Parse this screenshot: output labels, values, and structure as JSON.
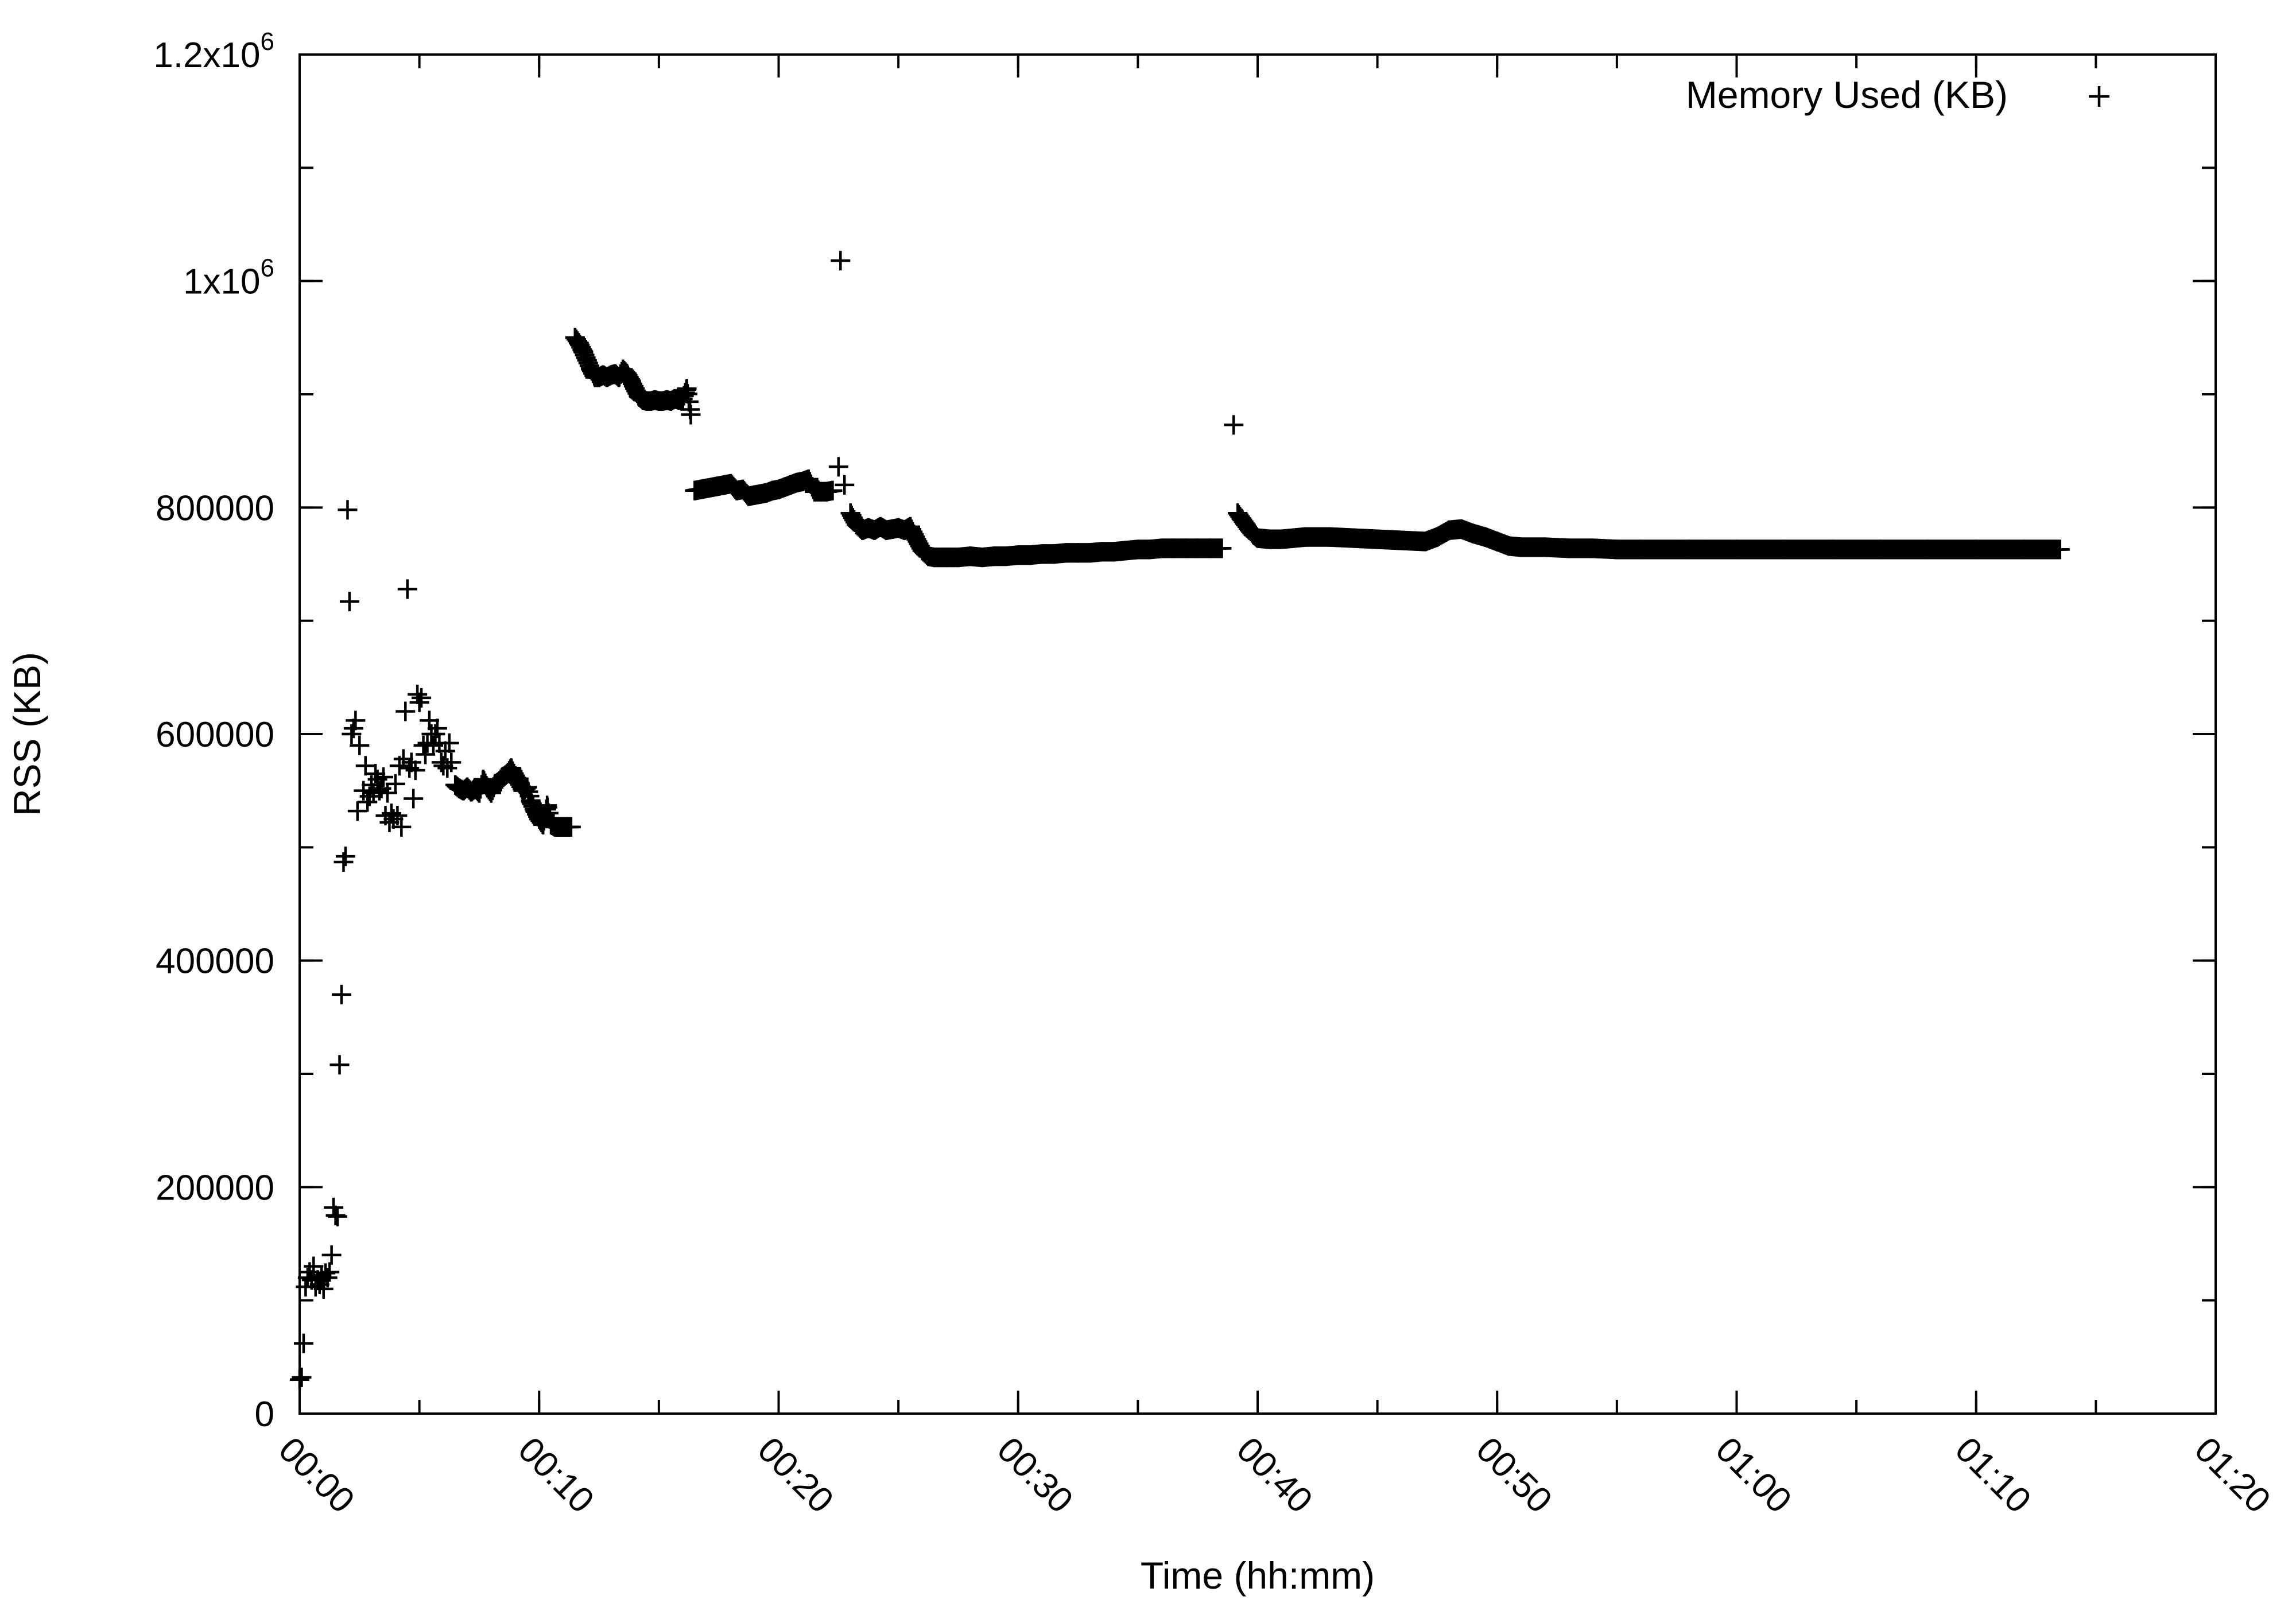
{
  "chart_data": {
    "type": "scatter",
    "title": "",
    "xlabel": "Time (hh:mm)",
    "ylabel": "RSS (KB)",
    "xlim": [
      "00:00",
      "01:20"
    ],
    "ylim": [
      0,
      1200000
    ],
    "x_ticks": [
      "00:00",
      "00:10",
      "00:20",
      "00:30",
      "00:40",
      "00:50",
      "01:00",
      "01:10",
      "01:20"
    ],
    "y_ticks": [
      {
        "value": 0,
        "label": "0"
      },
      {
        "value": 200000,
        "label": "200000"
      },
      {
        "value": 400000,
        "label": "400000"
      },
      {
        "value": 600000,
        "label": "600000"
      },
      {
        "value": 800000,
        "label": "800000"
      },
      {
        "value": 1000000,
        "label": "1x10",
        "exp": "6"
      },
      {
        "value": 1200000,
        "label": "1.2x10",
        "exp": "6"
      }
    ],
    "grid": false,
    "legend_position": "top-right",
    "marker": "plus",
    "marker_color": "#000000",
    "series": [
      {
        "name": "Memory Used (KB)",
        "points": [
          [
            "00:00:00",
            30000
          ],
          [
            "00:00:05",
            32000
          ],
          [
            "00:00:10",
            62000
          ],
          [
            "00:00:15",
            112000
          ],
          [
            "00:00:20",
            120000
          ],
          [
            "00:00:25",
            125000
          ],
          [
            "00:00:30",
            118000
          ],
          [
            "00:00:35",
            130000
          ],
          [
            "00:00:40",
            112000
          ],
          [
            "00:00:45",
            118000
          ],
          [
            "00:00:50",
            114000
          ],
          [
            "00:00:55",
            122000
          ],
          [
            "00:01:00",
            110000
          ],
          [
            "00:01:05",
            124000
          ],
          [
            "00:01:10",
            120000
          ],
          [
            "00:01:15",
            125000
          ],
          [
            "00:01:20",
            140000
          ],
          [
            "00:01:25",
            182000
          ],
          [
            "00:01:30",
            175000
          ],
          [
            "00:01:35",
            174000
          ],
          [
            "00:01:40",
            308000
          ],
          [
            "00:01:45",
            370000
          ],
          [
            "00:01:50",
            487000
          ],
          [
            "00:01:55",
            492000
          ],
          [
            "00:02:00",
            798000
          ],
          [
            "00:02:05",
            717000
          ],
          [
            "00:02:10",
            600000
          ],
          [
            "00:02:15",
            605000
          ],
          [
            "00:02:20",
            612000
          ],
          [
            "00:02:25",
            532000
          ],
          [
            "00:02:30",
            590000
          ],
          [
            "00:02:40",
            550000
          ],
          [
            "00:02:45",
            572000
          ],
          [
            "00:02:50",
            540000
          ],
          [
            "00:02:55",
            545000
          ],
          [
            "00:03:00",
            555000
          ],
          [
            "00:03:05",
            548000
          ],
          [
            "00:03:10",
            565000
          ],
          [
            "00:03:15",
            560000
          ],
          [
            "00:03:20",
            550000
          ],
          [
            "00:03:25",
            552000
          ],
          [
            "00:03:30",
            562000
          ],
          [
            "00:03:35",
            528000
          ],
          [
            "00:03:40",
            548000
          ],
          [
            "00:03:45",
            522000
          ],
          [
            "00:03:50",
            530000
          ],
          [
            "00:03:55",
            525000
          ],
          [
            "00:04:00",
            556000
          ],
          [
            "00:04:05",
            528000
          ],
          [
            "00:04:10",
            572000
          ],
          [
            "00:04:15",
            518000
          ],
          [
            "00:04:20",
            578000
          ],
          [
            "00:04:25",
            620000
          ],
          [
            "00:04:30",
            728000
          ],
          [
            "00:04:35",
            570000
          ],
          [
            "00:04:40",
            575000
          ],
          [
            "00:04:45",
            543000
          ],
          [
            "00:04:50",
            568000
          ],
          [
            "00:04:55",
            635000
          ],
          [
            "00:05:00",
            628000
          ],
          [
            "00:05:05",
            632000
          ],
          [
            "00:05:10",
            590000
          ],
          [
            "00:05:15",
            582000
          ],
          [
            "00:05:20",
            592000
          ],
          [
            "00:05:25",
            612000
          ],
          [
            "00:05:30",
            600000
          ],
          [
            "00:05:35",
            590000
          ],
          [
            "00:05:40",
            600000
          ],
          [
            "00:05:45",
            605000
          ],
          [
            "00:05:50",
            592000
          ],
          [
            "00:05:55",
            575000
          ],
          [
            "00:06:00",
            572000
          ],
          [
            "00:06:05",
            585000
          ],
          [
            "00:06:10",
            570000
          ],
          [
            "00:06:15",
            592000
          ],
          [
            "00:06:20",
            575000
          ],
          [
            "00:06:30",
            555000
          ],
          [
            "00:06:40",
            552000
          ],
          [
            "00:06:50",
            550000
          ],
          [
            "00:07:00",
            553000
          ],
          [
            "00:07:10",
            549000
          ],
          [
            "00:07:20",
            552000
          ],
          [
            "00:07:30",
            548000
          ],
          [
            "00:07:40",
            560000
          ],
          [
            "00:07:50",
            553000
          ],
          [
            "00:08:00",
            548000
          ],
          [
            "00:08:10",
            556000
          ],
          [
            "00:08:20",
            558000
          ],
          [
            "00:08:30",
            562000
          ],
          [
            "00:08:40",
            565000
          ],
          [
            "00:08:50",
            570000
          ],
          [
            "00:09:00",
            563000
          ],
          [
            "00:09:10",
            557000
          ],
          [
            "00:09:20",
            550000
          ],
          [
            "00:09:30",
            553000
          ],
          [
            "00:09:40",
            540000
          ],
          [
            "00:09:50",
            532000
          ],
          [
            "00:10:00",
            525000
          ],
          [
            "00:10:10",
            520000
          ],
          [
            "00:10:20",
            537000
          ],
          [
            "00:10:30",
            520000
          ],
          [
            "00:10:40",
            518000
          ],
          [
            "00:10:50",
            518000
          ],
          [
            "00:11:00",
            518000
          ],
          [
            "00:11:10",
            518000
          ],
          [
            "00:11:20",
            518000
          ],
          [
            "00:11:30",
            950000
          ],
          [
            "00:11:40",
            945000
          ],
          [
            "00:11:50",
            938000
          ],
          [
            "00:12:00",
            930000
          ],
          [
            "00:12:10",
            922000
          ],
          [
            "00:12:20",
            915000
          ],
          [
            "00:12:30",
            915000
          ],
          [
            "00:12:40",
            917000
          ],
          [
            "00:12:50",
            915000
          ],
          [
            "00:13:00",
            917000
          ],
          [
            "00:13:10",
            918000
          ],
          [
            "00:13:20",
            915000
          ],
          [
            "00:13:30",
            922000
          ],
          [
            "00:13:40",
            918000
          ],
          [
            "00:13:50",
            912000
          ],
          [
            "00:14:00",
            905000
          ],
          [
            "00:14:10",
            898000
          ],
          [
            "00:14:20",
            895000
          ],
          [
            "00:14:30",
            894000
          ],
          [
            "00:14:40",
            894000
          ],
          [
            "00:14:50",
            895000
          ],
          [
            "00:15:00",
            894000
          ],
          [
            "00:15:10",
            894000
          ],
          [
            "00:15:20",
            895000
          ],
          [
            "00:15:30",
            894000
          ],
          [
            "00:15:40",
            896000
          ],
          [
            "00:15:50",
            895000
          ],
          [
            "00:16:00",
            896000
          ],
          [
            "00:16:10",
            905000
          ],
          [
            "00:16:20",
            882000
          ],
          [
            "00:16:30",
            815000
          ],
          [
            "00:16:45",
            816000
          ],
          [
            "00:17:00",
            817000
          ],
          [
            "00:17:15",
            818000
          ],
          [
            "00:17:30",
            819000
          ],
          [
            "00:17:45",
            820000
          ],
          [
            "00:18:00",
            821000
          ],
          [
            "00:18:15",
            815000
          ],
          [
            "00:18:30",
            816000
          ],
          [
            "00:18:45",
            810000
          ],
          [
            "00:19:00",
            811000
          ],
          [
            "00:19:15",
            812000
          ],
          [
            "00:19:30",
            813000
          ],
          [
            "00:19:45",
            815000
          ],
          [
            "00:20:00",
            816000
          ],
          [
            "00:20:15",
            818000
          ],
          [
            "00:20:30",
            820000
          ],
          [
            "00:20:45",
            822000
          ],
          [
            "00:21:00",
            823000
          ],
          [
            "00:21:15",
            825000
          ],
          [
            "00:21:30",
            814000
          ],
          [
            "00:21:45",
            814000
          ],
          [
            "00:22:00",
            814000
          ],
          [
            "00:22:15",
            815000
          ],
          [
            "00:22:30",
            836000
          ],
          [
            "00:22:35",
            1018000
          ],
          [
            "00:22:45",
            820000
          ],
          [
            "00:23:00",
            795000
          ],
          [
            "00:23:15",
            785000
          ],
          [
            "00:23:30",
            780000
          ],
          [
            "00:23:45",
            782000
          ],
          [
            "00:24:00",
            780000
          ],
          [
            "00:24:15",
            783000
          ],
          [
            "00:24:30",
            780000
          ],
          [
            "00:24:45",
            781000
          ],
          [
            "00:25:00",
            782000
          ],
          [
            "00:25:15",
            780000
          ],
          [
            "00:25:30",
            783000
          ],
          [
            "00:25:45",
            772000
          ],
          [
            "00:26:00",
            762000
          ],
          [
            "00:26:15",
            757000
          ],
          [
            "00:26:30",
            756000
          ],
          [
            "00:27:00",
            756000
          ],
          [
            "00:27:30",
            756000
          ],
          [
            "00:28:00",
            757000
          ],
          [
            "00:28:30",
            756000
          ],
          [
            "00:29:00",
            757000
          ],
          [
            "00:29:30",
            757000
          ],
          [
            "00:30:00",
            758000
          ],
          [
            "00:30:30",
            758000
          ],
          [
            "00:31:00",
            759000
          ],
          [
            "00:31:30",
            759000
          ],
          [
            "00:32:00",
            760000
          ],
          [
            "00:32:30",
            760000
          ],
          [
            "00:33:00",
            760000
          ],
          [
            "00:33:30",
            761000
          ],
          [
            "00:34:00",
            761000
          ],
          [
            "00:34:30",
            762000
          ],
          [
            "00:35:00",
            763000
          ],
          [
            "00:35:30",
            763000
          ],
          [
            "00:36:00",
            764000
          ],
          [
            "00:36:30",
            764000
          ],
          [
            "00:37:00",
            764000
          ],
          [
            "00:37:30",
            764000
          ],
          [
            "00:38:00",
            764000
          ],
          [
            "00:38:30",
            764000
          ],
          [
            "00:39:00",
            873000
          ],
          [
            "00:39:10",
            795000
          ],
          [
            "00:39:20",
            790000
          ],
          [
            "00:39:30",
            785000
          ],
          [
            "00:39:40",
            780000
          ],
          [
            "00:39:50",
            776000
          ],
          [
            "00:40:00",
            773000
          ],
          [
            "00:40:30",
            772000
          ],
          [
            "00:41:00",
            772000
          ],
          [
            "00:41:30",
            773000
          ],
          [
            "00:42:00",
            774000
          ],
          [
            "00:43:00",
            774000
          ],
          [
            "00:44:00",
            773000
          ],
          [
            "00:45:00",
            772000
          ],
          [
            "00:46:00",
            771000
          ],
          [
            "00:47:00",
            770000
          ],
          [
            "00:47:30",
            774000
          ],
          [
            "00:48:00",
            780000
          ],
          [
            "00:48:30",
            781000
          ],
          [
            "00:49:00",
            777000
          ],
          [
            "00:49:30",
            774000
          ],
          [
            "00:50:00",
            770000
          ],
          [
            "00:50:30",
            766000
          ],
          [
            "00:51:00",
            765000
          ],
          [
            "00:52:00",
            765000
          ],
          [
            "00:53:00",
            764000
          ],
          [
            "00:54:00",
            764000
          ],
          [
            "00:55:00",
            763000
          ],
          [
            "00:56:00",
            763000
          ],
          [
            "00:58:00",
            763000
          ],
          [
            "01:00:00",
            763000
          ],
          [
            "01:02:00",
            763000
          ],
          [
            "01:04:00",
            763000
          ],
          [
            "01:06:00",
            763000
          ],
          [
            "01:08:00",
            763000
          ],
          [
            "01:10:00",
            763000
          ],
          [
            "01:12:00",
            763000
          ],
          [
            "01:13:30",
            763000
          ]
        ],
        "continuous_bands": [
          {
            "from": "00:06:30",
            "to": "00:11:20"
          },
          {
            "from": "00:11:30",
            "to": "00:16:20"
          },
          {
            "from": "00:16:30",
            "to": "00:22:15"
          },
          {
            "from": "00:23:00",
            "to": "00:38:30"
          },
          {
            "from": "00:39:10",
            "to": "01:13:30"
          }
        ]
      }
    ]
  }
}
